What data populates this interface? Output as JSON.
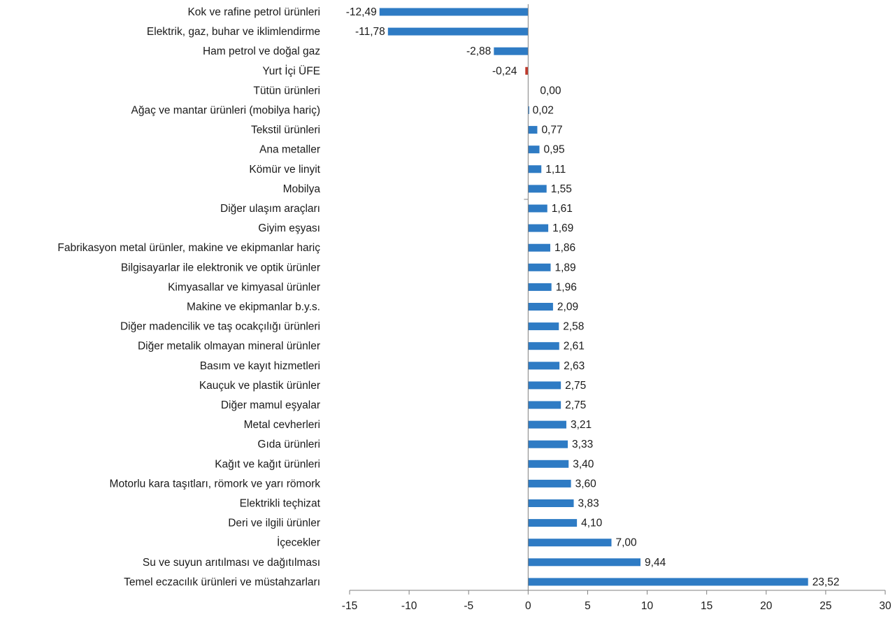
{
  "chart_data": {
    "type": "bar",
    "orientation": "horizontal",
    "title": "",
    "xlabel": "",
    "ylabel": "",
    "xlim": [
      -15,
      30
    ],
    "x_ticks": [
      "-15",
      "-10",
      "-5",
      "0",
      "5",
      "10",
      "15",
      "20",
      "25",
      "30"
    ],
    "grid": false,
    "legend": "none",
    "colors": {
      "positive": "#2e7bc4",
      "negative_highlight": "#c0392b"
    },
    "categories": [
      "Kok ve rafine petrol ürünleri",
      "Elektrik, gaz, buhar ve iklimlendirme",
      "Ham petrol ve doğal gaz",
      "Yurt İçi ÜFE",
      "Tütün ürünleri",
      "Ağaç ve mantar ürünleri (mobilya hariç)",
      "Tekstil ürünleri",
      "Ana metaller",
      "Kömür ve linyit",
      "Mobilya",
      "Diğer ulaşım araçları",
      "Giyim eşyası",
      "Fabrikasyon metal ürünler, makine ve ekipmanlar hariç",
      "Bilgisayarlar ile elektronik ve optik ürünler",
      "Kimyasallar ve kimyasal ürünler",
      "Makine ve ekipmanlar b.y.s.",
      "Diğer madencilik ve taş ocakçılığı ürünleri",
      "Diğer metalik olmayan mineral ürünler",
      "Basım ve kayıt hizmetleri",
      "Kauçuk ve plastik ürünler",
      "Diğer mamul eşyalar",
      "Metal cevherleri",
      "Gıda ürünleri",
      "Kağıt ve kağıt ürünleri",
      "Motorlu kara taşıtları, römork ve yarı römork",
      "Elektrikli teçhizat",
      "Deri ve ilgili ürünler",
      "İçecekler",
      "Su ve suyun arıtılması ve dağıtılması",
      "Temel eczacılık ürünleri ve müstahzarları"
    ],
    "values": [
      -12.49,
      -11.78,
      -2.88,
      -0.24,
      0.0,
      0.02,
      0.77,
      0.95,
      1.11,
      1.55,
      1.61,
      1.69,
      1.86,
      1.89,
      1.96,
      2.09,
      2.58,
      2.61,
      2.63,
      2.75,
      2.75,
      3.21,
      3.33,
      3.4,
      3.6,
      3.83,
      4.1,
      7.0,
      9.44,
      23.52
    ],
    "value_labels": [
      "-12,49",
      "-11,78",
      "-2,88",
      "-0,24",
      "0,00",
      "0,02",
      "0,77",
      "0,95",
      "1,11",
      "1,55",
      "1,61",
      "1,69",
      "1,86",
      "1,89",
      "1,96",
      "2,09",
      "2,58",
      "2,61",
      "2,63",
      "2,75",
      "2,75",
      "3,21",
      "3,33",
      "3,40",
      "3,60",
      "3,83",
      "4,10",
      "7,00",
      "9,44",
      "23,52"
    ],
    "highlight_index": 3
  }
}
